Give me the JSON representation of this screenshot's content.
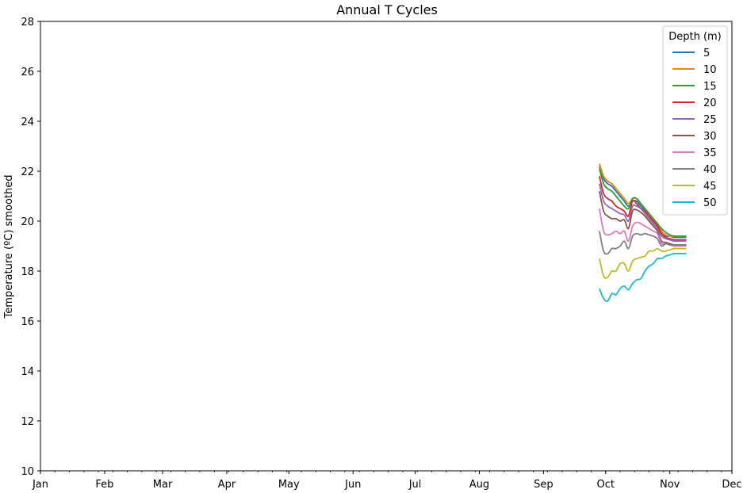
{
  "chart_data": {
    "type": "line",
    "title": "Annual T Cycles",
    "xlabel": "",
    "ylabel": "Temperature (ºC) smoothed",
    "xlim": [
      "Jan 1",
      "Dec 1"
    ],
    "ylim": [
      10,
      28
    ],
    "x_ticks": [
      "Jan",
      "Feb",
      "Mar",
      "Apr",
      "May",
      "Jun",
      "Jul",
      "Aug",
      "Sep",
      "Oct",
      "Nov",
      "Dec"
    ],
    "y_ticks": [
      10,
      12,
      14,
      16,
      18,
      20,
      22,
      24,
      26,
      28
    ],
    "grid": false,
    "legend": {
      "title": "Depth (m)",
      "placement": "top-right"
    },
    "x": [
      "Sep 28",
      "Sep 30",
      "Oct 2",
      "Oct 4",
      "Oct 6",
      "Oct 8",
      "Oct 10",
      "Oct 12",
      "Oct 14",
      "Oct 16",
      "Oct 18",
      "Oct 20",
      "Oct 22",
      "Oct 24",
      "Oct 26",
      "Oct 28",
      "Oct 30",
      "Nov 1",
      "Nov 3",
      "Nov 5",
      "Nov 7",
      "Nov 9"
    ],
    "series": [
      {
        "name": "5",
        "color": "#1f77b4",
        "values": [
          22.2,
          21.7,
          21.5,
          21.4,
          21.2,
          21.0,
          20.8,
          20.6,
          20.8,
          20.8,
          20.6,
          20.4,
          20.2,
          20.0,
          19.8,
          19.5,
          19.4,
          19.4,
          19.35,
          19.35,
          19.35,
          19.35
        ]
      },
      {
        "name": "10",
        "color": "#ff7f0e",
        "values": [
          22.3,
          21.8,
          21.6,
          21.5,
          21.3,
          21.1,
          20.9,
          20.7,
          20.9,
          20.9,
          20.7,
          20.5,
          20.3,
          20.1,
          19.9,
          19.6,
          19.45,
          19.4,
          19.4,
          19.4,
          19.4,
          19.4
        ]
      },
      {
        "name": "15",
        "color": "#2ca02c",
        "values": [
          22.1,
          21.5,
          21.3,
          21.2,
          21.0,
          20.8,
          20.6,
          20.5,
          20.9,
          20.9,
          20.7,
          20.5,
          20.3,
          20.1,
          19.9,
          19.7,
          19.55,
          19.45,
          19.4,
          19.4,
          19.4,
          19.4
        ]
      },
      {
        "name": "20",
        "color": "#d62728",
        "values": [
          21.8,
          21.1,
          20.9,
          20.8,
          20.6,
          20.5,
          20.4,
          20.2,
          20.8,
          20.7,
          20.5,
          20.4,
          20.2,
          20.0,
          19.8,
          19.5,
          19.35,
          19.3,
          19.25,
          19.25,
          19.25,
          19.25
        ]
      },
      {
        "name": "25",
        "color": "#9467bd",
        "values": [
          21.5,
          20.8,
          20.6,
          20.5,
          20.4,
          20.3,
          20.25,
          20.0,
          20.6,
          20.6,
          20.5,
          20.3,
          20.1,
          19.9,
          19.7,
          19.4,
          19.3,
          19.25,
          19.2,
          19.2,
          19.2,
          19.2
        ]
      },
      {
        "name": "30",
        "color": "#8c564b",
        "values": [
          21.2,
          20.4,
          20.2,
          20.1,
          20.1,
          20.0,
          20.05,
          19.7,
          20.4,
          20.45,
          20.35,
          20.2,
          20.0,
          19.8,
          19.6,
          19.2,
          19.15,
          19.1,
          19.05,
          19.05,
          19.05,
          19.05
        ]
      },
      {
        "name": "35",
        "color": "#e377c2",
        "values": [
          20.5,
          19.6,
          19.45,
          19.5,
          19.6,
          19.5,
          19.6,
          19.2,
          19.8,
          19.95,
          19.9,
          19.8,
          19.7,
          19.6,
          19.5,
          19.1,
          19.1,
          19.05,
          19.0,
          19.0,
          19.0,
          19.0
        ]
      },
      {
        "name": "40",
        "color": "#7f7f7f",
        "values": [
          19.6,
          18.8,
          18.7,
          18.9,
          18.9,
          19.0,
          19.2,
          18.9,
          19.4,
          19.5,
          19.45,
          19.5,
          19.45,
          19.4,
          19.3,
          19.0,
          19.1,
          19.05,
          19.05,
          19.05,
          19.05,
          19.05
        ]
      },
      {
        "name": "45",
        "color": "#bcbd22",
        "values": [
          18.5,
          17.8,
          17.75,
          18.0,
          18.0,
          18.3,
          18.3,
          18.0,
          18.4,
          18.5,
          18.55,
          18.6,
          18.8,
          18.8,
          18.9,
          18.8,
          18.8,
          18.85,
          18.9,
          18.9,
          18.9,
          18.9
        ]
      },
      {
        "name": "50",
        "color": "#17becf",
        "values": [
          17.3,
          16.9,
          16.8,
          17.1,
          17.05,
          17.3,
          17.4,
          17.25,
          17.5,
          17.65,
          17.7,
          18.0,
          18.2,
          18.3,
          18.5,
          18.5,
          18.6,
          18.65,
          18.7,
          18.7,
          18.7,
          18.7
        ]
      }
    ]
  }
}
